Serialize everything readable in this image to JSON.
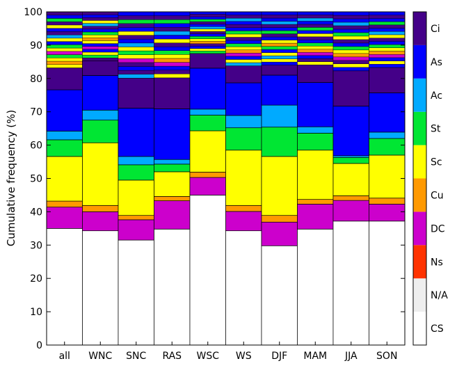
{
  "chart_data": {
    "type": "bar",
    "stacked": true,
    "ylabel": "Cumulative frequency (%)",
    "ylim": [
      0,
      100
    ],
    "yticks": [
      0,
      10,
      20,
      30,
      40,
      50,
      60,
      70,
      80,
      90,
      100
    ],
    "categories": [
      "all",
      "WNC",
      "SNC",
      "RAS",
      "WSC",
      "WS",
      "DJF",
      "MAM",
      "JJA",
      "SON"
    ],
    "legend_position": "right",
    "series": [
      {
        "name": "CS",
        "color": "#ffffff",
        "values": [
          35.0,
          34.3,
          31.5,
          34.8,
          45.0,
          34.3,
          29.8,
          34.8,
          37.2,
          37.2
        ]
      },
      {
        "name": "N/A",
        "color": "#eeeeee",
        "values": [
          0,
          0,
          0,
          0,
          0,
          0,
          0,
          0,
          0,
          0
        ]
      },
      {
        "name": "Ns",
        "color": "#ff3300",
        "values": [
          0,
          0,
          0,
          0,
          0,
          0,
          0,
          0,
          0,
          0
        ]
      },
      {
        "name": "DC",
        "color": "#cc00cc",
        "values": [
          6.4,
          5.7,
          6.1,
          8.5,
          5.3,
          5.8,
          7.1,
          7.5,
          6.2,
          5.1
        ]
      },
      {
        "name": "Cu",
        "color": "#ff9900",
        "values": [
          1.8,
          1.9,
          1.3,
          1.3,
          1.6,
          1.8,
          2.0,
          1.4,
          1.4,
          1.8
        ]
      },
      {
        "name": "Sc",
        "color": "#ffff00",
        "values": [
          13.4,
          18.8,
          10.6,
          7.4,
          12.4,
          16.6,
          17.7,
          14.8,
          9.7,
          12.9
        ]
      },
      {
        "name": "St",
        "color": "#00e633",
        "values": [
          5.0,
          6.8,
          4.6,
          2.3,
          4.7,
          6.7,
          8.8,
          5.1,
          1.8,
          5.0
        ]
      },
      {
        "name": "Ac",
        "color": "#00aaff",
        "values": [
          2.6,
          3.0,
          2.5,
          1.4,
          1.8,
          3.7,
          6.6,
          1.9,
          0.5,
          1.9
        ]
      },
      {
        "name": "As",
        "color": "#0000ff",
        "values": [
          12.4,
          10.4,
          14.5,
          15.2,
          12.3,
          9.8,
          9.0,
          13.3,
          14.9,
          11.8
        ]
      },
      {
        "name": "Ci",
        "color": "#440088",
        "values": [
          6.6,
          4.4,
          9.0,
          9.3,
          4.4,
          5.1,
          3.0,
          5.3,
          10.6,
          7.6
        ]
      }
    ],
    "upper_bands": [
      [
        "#ffff00",
        "#ff9900",
        "#ffff00",
        "#00e633",
        "#cc00cc",
        "#ffff00",
        "#00e633",
        "#0000ff",
        "#ffff00",
        "#00aaff",
        "#440088",
        "#0000ff",
        "#ffff00",
        "#440088",
        "#00e633",
        "#0000ff",
        "#440088"
      ],
      [
        "#440088",
        "#00e633",
        "#ffff00",
        "#0000ff",
        "#cc00cc",
        "#0000ff",
        "#ffff00",
        "#ff9900",
        "#ffff00",
        "#00e633",
        "#0000ff",
        "#440088",
        "#00aaff",
        "#ffff00",
        "#440088",
        "#0000ff",
        "#440088"
      ],
      [
        "#00aaff",
        "#440088",
        "#0000ff",
        "#440088",
        "#cc00cc",
        "#ffff00",
        "#00e633",
        "#ffff00",
        "#00aaff",
        "#0000ff",
        "#440088",
        "#ffff00",
        "#0000ff",
        "#440088",
        "#00e633",
        "#440088",
        "#0000ff"
      ],
      [
        "#ffff00",
        "#440088",
        "#0000ff",
        "#cc00cc",
        "#ff9900",
        "#ffff00",
        "#00e633",
        "#0000ff",
        "#440088",
        "#ffff00",
        "#0000ff",
        "#00aaff",
        "#440088",
        "#0000ff",
        "#00e633",
        "#440088",
        "#0000ff"
      ],
      [
        "#00e633",
        "#ffff00",
        "#0000ff",
        "#440088",
        "#ff9900",
        "#ffff00",
        "#00e633",
        "#0000ff",
        "#440088",
        "#ffff00",
        "#00aaff",
        "#0000ff",
        "#440088",
        "#00e633",
        "#0000ff",
        "#440088",
        "#0000ff"
      ],
      [
        "#00aaff",
        "#ffff00",
        "#0000ff",
        "#cc00cc",
        "#ff9900",
        "#ffff00",
        "#00e633",
        "#0000ff",
        "#440088",
        "#ffff00",
        "#00e633",
        "#0000ff",
        "#440088",
        "#0000ff",
        "#00aaff",
        "#440088",
        "#0000ff"
      ],
      [
        "#0000ff",
        "#ffff00",
        "#00aaff",
        "#ffff00",
        "#0000ff",
        "#00e633",
        "#ff9900",
        "#ffff00",
        "#0000ff",
        "#440088",
        "#00e633",
        "#0000ff",
        "#440088",
        "#00aaff",
        "#0000ff",
        "#440088",
        "#0000ff"
      ],
      [
        "#ffff00",
        "#440088",
        "#0000ff",
        "#cc00cc",
        "#ff9900",
        "#ffff00",
        "#00e633",
        "#0000ff",
        "#440088",
        "#ffff00",
        "#0000ff",
        "#00e633",
        "#440088",
        "#0000ff",
        "#00aaff",
        "#440088",
        "#0000ff"
      ],
      [
        "#0000ff",
        "#ffff00",
        "#440088",
        "#cc00cc",
        "#ff9900",
        "#ffff00",
        "#00e633",
        "#0000ff",
        "#440088",
        "#ffff00",
        "#00e633",
        "#0000ff",
        "#440088",
        "#00aaff",
        "#0000ff",
        "#440088",
        "#0000ff"
      ],
      [
        "#0000ff",
        "#ffff00",
        "#0000ff",
        "#cc00cc",
        "#ff9900",
        "#ffff00",
        "#00e633",
        "#0000ff",
        "#440088",
        "#ffff00",
        "#00aaff",
        "#0000ff",
        "#440088",
        "#00e633",
        "#0000ff",
        "#440088",
        "#0000ff"
      ]
    ]
  }
}
